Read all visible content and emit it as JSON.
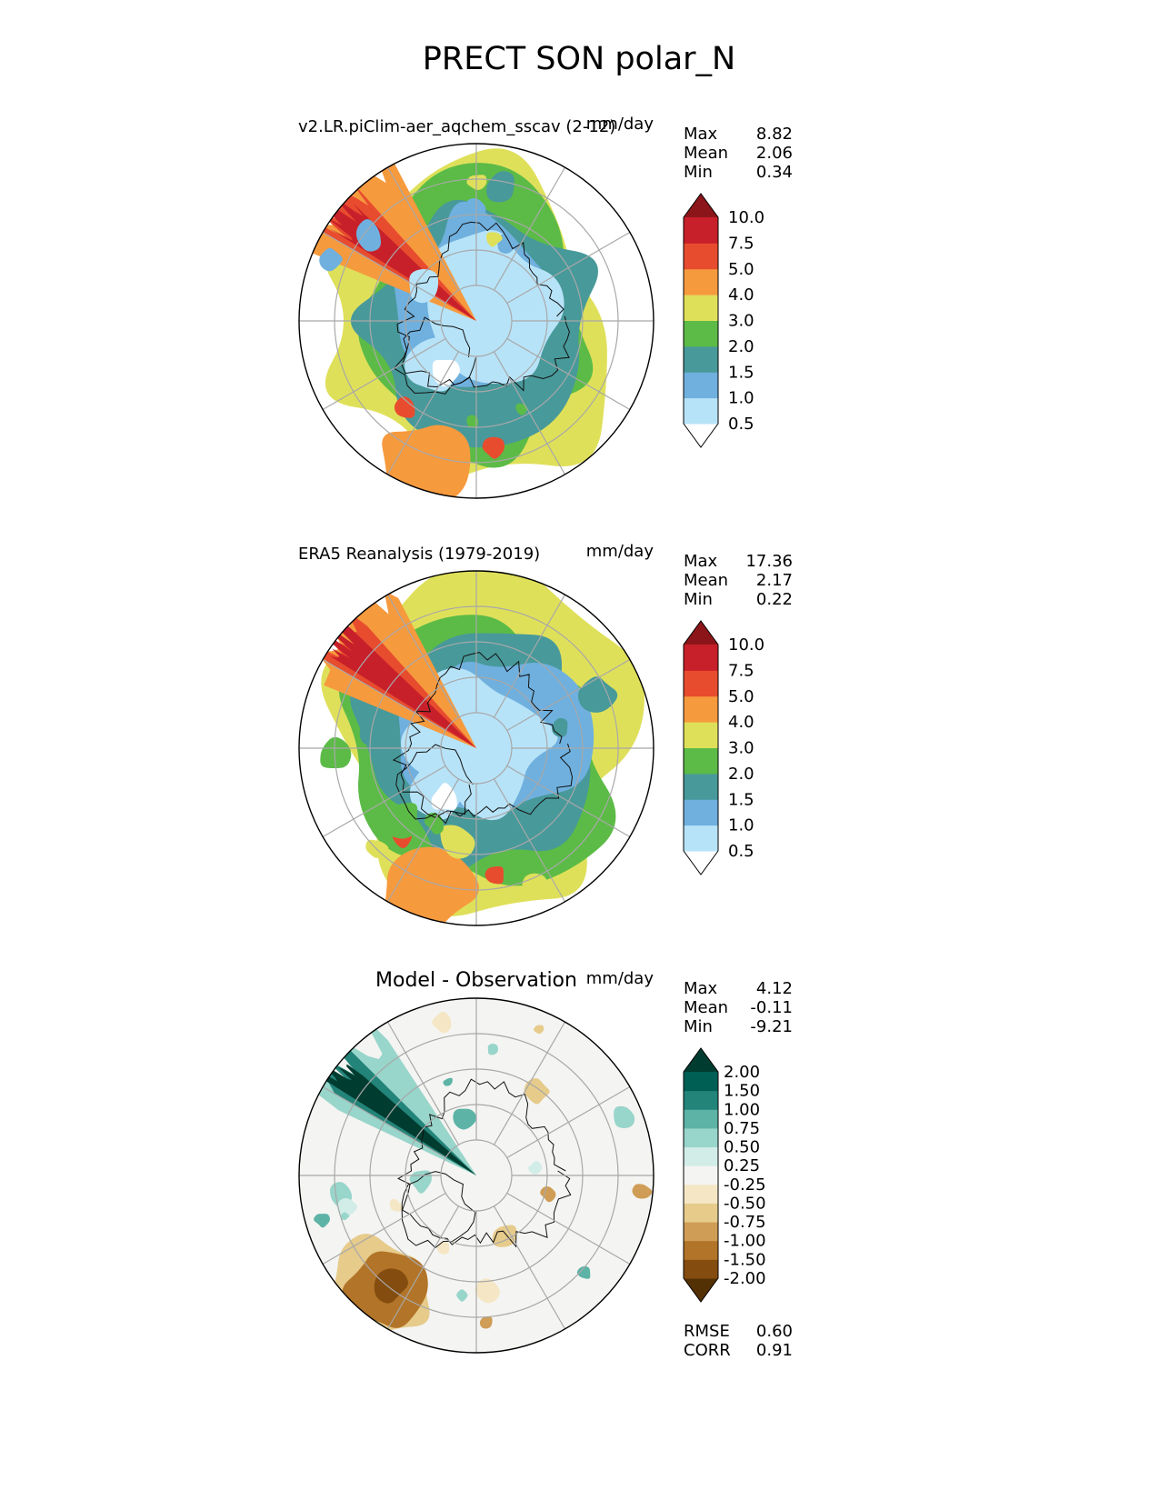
{
  "figure": {
    "title": "PRECT SON polar_N"
  },
  "chart_data": [
    {
      "type": "heatmap",
      "projection": "north-polar-stereographic",
      "title": "v2.LR.piClim-aer_aqchem_sscav (2-12)",
      "units": "mm/day",
      "stats": [
        {
          "label": "Max",
          "value": "8.82"
        },
        {
          "label": "Mean",
          "value": "2.06"
        },
        {
          "label": "Min",
          "value": "0.34"
        }
      ],
      "colorbar": {
        "levels": [
          "0.5",
          "1.0",
          "1.5",
          "2.0",
          "3.0",
          "4.0",
          "5.0",
          "7.5",
          "10.0"
        ],
        "colors": [
          "#ffffff",
          "#b7e3f8",
          "#6fb0de",
          "#48999a",
          "#5cbb47",
          "#dfe05a",
          "#f69a3e",
          "#e84c2e",
          "#c8202a",
          "#8b1519"
        ],
        "extend": "both"
      },
      "grid": true,
      "coastlines": true
    },
    {
      "type": "heatmap",
      "projection": "north-polar-stereographic",
      "title": "ERA5 Reanalysis (1979-2019)",
      "units": "mm/day",
      "stats": [
        {
          "label": "Max",
          "value": "17.36"
        },
        {
          "label": "Mean",
          "value": "2.17"
        },
        {
          "label": "Min",
          "value": "0.22"
        }
      ],
      "colorbar": {
        "levels": [
          "0.5",
          "1.0",
          "1.5",
          "2.0",
          "3.0",
          "4.0",
          "5.0",
          "7.5",
          "10.0"
        ],
        "colors": [
          "#ffffff",
          "#b7e3f8",
          "#6fb0de",
          "#48999a",
          "#5cbb47",
          "#dfe05a",
          "#f69a3e",
          "#e84c2e",
          "#c8202a",
          "#8b1519"
        ],
        "extend": "both"
      },
      "grid": true,
      "coastlines": true
    },
    {
      "type": "heatmap",
      "projection": "north-polar-stereographic",
      "title": "Model - Observation",
      "units": "mm/day",
      "stats": [
        {
          "label": "Max",
          "value": "4.12"
        },
        {
          "label": "Mean",
          "value": "-0.11"
        },
        {
          "label": "Min",
          "value": "-9.21"
        }
      ],
      "colorbar": {
        "levels": [
          "-2.00",
          "-1.50",
          "-1.00",
          "-0.75",
          "-0.50",
          "-0.25",
          "0.25",
          "0.50",
          "0.75",
          "1.00",
          "1.50",
          "2.00"
        ],
        "colors": [
          "#543005",
          "#844d0f",
          "#b27428",
          "#cf9d55",
          "#e6cb8b",
          "#f5e7c5",
          "#f4f4f2",
          "#d2ece7",
          "#98d5ca",
          "#5cb3a6",
          "#238479",
          "#005f55",
          "#003c30"
        ],
        "extend": "both"
      },
      "metrics": [
        {
          "label": "RMSE",
          "value": "0.60"
        },
        {
          "label": "CORR",
          "value": "0.91"
        }
      ],
      "grid": true,
      "coastlines": true
    }
  ]
}
